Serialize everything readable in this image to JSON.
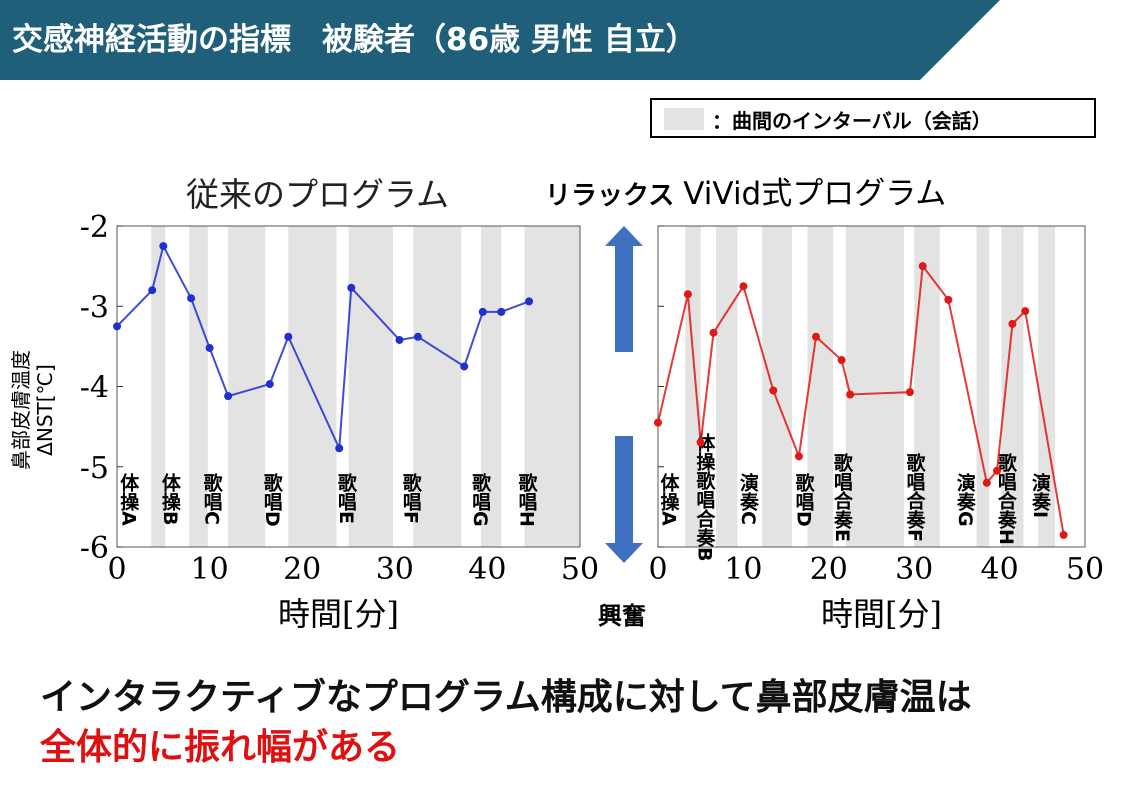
{
  "slide": {
    "title": "交感神経活動の指標　被験者（86歳 男性 自立）",
    "legend_label": "：曲間のインターバル（会話）",
    "center_label": "興奮",
    "conclusion_line1": "インタラクティブなプログラム構成に対して鼻部皮膚温は",
    "conclusion_line2": "全体的に振れ幅がある",
    "colors": {
      "banner": "#1f5f7a",
      "left_series": "#1f2fd0",
      "right_series": "#e01818",
      "arrow": "#3f6fbf",
      "interval": "#e3e3e3",
      "emphasis": "#e01010"
    }
  },
  "chart_data": [
    {
      "type": "line",
      "title": "従来のプログラム",
      "xlabel": "時間[分]",
      "ylabel_line1": "鼻部皮膚温度",
      "ylabel_line2": "ΔNST[℃]",
      "xlim": [
        0,
        50
      ],
      "ylim": [
        -6,
        -2
      ],
      "x_ticks": [
        "0",
        "10",
        "20",
        "30",
        "40",
        "50"
      ],
      "y_ticks": [
        "-2",
        "-3",
        "-4",
        "-5",
        "-6"
      ],
      "interval_bands": [
        [
          3.7,
          5.2
        ],
        [
          7.8,
          9.8
        ],
        [
          12.0,
          16.0
        ],
        [
          18.5,
          23.7
        ],
        [
          25.0,
          29.8
        ],
        [
          32.0,
          37.2
        ],
        [
          39.3,
          41.5
        ],
        [
          44.0,
          50.0
        ]
      ],
      "section_labels": [
        {
          "x": 1.0,
          "text": "体操A"
        },
        {
          "x": 5.5,
          "text": "体操B"
        },
        {
          "x": 10.0,
          "text": "歌唱C"
        },
        {
          "x": 16.5,
          "text": "歌唱D"
        },
        {
          "x": 24.5,
          "text": "歌唱E"
        },
        {
          "x": 31.5,
          "text": "歌唱F"
        },
        {
          "x": 39.0,
          "text": "歌唱G"
        },
        {
          "x": 44.0,
          "text": "歌唱H"
        }
      ],
      "series": [
        {
          "x": [
            0,
            3.8,
            5.0,
            8.0,
            10.0,
            12.0,
            16.5,
            18.5,
            24.0,
            25.3,
            30.5,
            32.5,
            37.5,
            39.5,
            41.5,
            44.5
          ],
          "y": [
            -3.25,
            -2.8,
            -2.25,
            -2.9,
            -3.52,
            -4.12,
            -3.97,
            -3.38,
            -4.77,
            -2.77,
            -3.42,
            -3.38,
            -3.75,
            -3.07,
            -3.07,
            -2.94
          ]
        }
      ]
    },
    {
      "type": "line",
      "title": "リラックス ViVid式プログラム",
      "xlabel": "時間[分]",
      "xlim": [
        0,
        50
      ],
      "ylim": [
        -6,
        -2
      ],
      "x_ticks": [
        "0",
        "10",
        "20",
        "30",
        "40",
        "50"
      ],
      "interval_bands": [
        [
          3.2,
          5.0
        ],
        [
          6.8,
          9.3
        ],
        [
          12.2,
          15.7
        ],
        [
          17.5,
          20.5
        ],
        [
          22.0,
          28.8
        ],
        [
          30.0,
          33.0
        ],
        [
          37.3,
          38.8
        ],
        [
          40.2,
          42.8
        ],
        [
          44.5,
          46.5
        ]
      ],
      "section_labels": [
        {
          "x": 1.0,
          "text": "体操A"
        },
        {
          "x": 5.2,
          "text": "体操歌唱合奏B"
        },
        {
          "x": 10.3,
          "text": "演奏C"
        },
        {
          "x": 16.8,
          "text": "歌唱D"
        },
        {
          "x": 21.3,
          "text": "歌唱合奏E"
        },
        {
          "x": 29.8,
          "text": "歌唱合奏F"
        },
        {
          "x": 35.7,
          "text": "演奏G"
        },
        {
          "x": 40.5,
          "text": "歌唱合奏H"
        },
        {
          "x": 44.5,
          "text": "演奏I"
        }
      ],
      "series": [
        {
          "x": [
            0,
            3.5,
            5.0,
            6.5,
            10.0,
            13.5,
            16.5,
            18.5,
            21.5,
            22.5,
            29.5,
            31.0,
            34.0,
            38.5,
            39.7,
            41.5,
            43.0,
            47.5
          ],
          "y": [
            -4.45,
            -2.85,
            -4.7,
            -3.33,
            -2.75,
            -4.05,
            -4.87,
            -3.38,
            -3.67,
            -4.1,
            -4.07,
            -2.5,
            -2.92,
            -5.2,
            -5.05,
            -3.22,
            -3.06,
            -5.85
          ]
        }
      ]
    }
  ]
}
